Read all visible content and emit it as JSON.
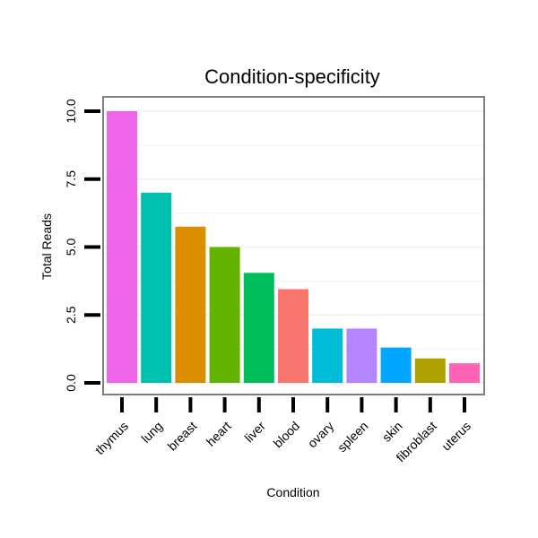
{
  "chart_data": {
    "type": "bar",
    "title": "Condition-specificity",
    "xlabel": "Condition",
    "ylabel": "Total Reads",
    "categories": [
      "thymus",
      "lung",
      "breast",
      "heart",
      "liver",
      "blood",
      "ovary",
      "spleen",
      "skin",
      "fibroblast",
      "uterus"
    ],
    "values": [
      10,
      7,
      5.75,
      5,
      4.05,
      3.45,
      2,
      2,
      1.3,
      0.9,
      0.72
    ],
    "colors": [
      "#F066EA",
      "#00C0AF",
      "#DB8E00",
      "#64B200",
      "#00BD5C",
      "#F8766D",
      "#00BCD8",
      "#B385FF",
      "#00A6FF",
      "#AEA200",
      "#FF63B6"
    ],
    "yticks": [
      "0.0",
      "2.5",
      "5.0",
      "7.5",
      "10.0"
    ],
    "ytick_values": [
      0,
      2.5,
      5,
      7.5,
      10
    ],
    "ylim": [
      -0.4,
      10.5
    ],
    "grid": true,
    "legend": "none"
  }
}
